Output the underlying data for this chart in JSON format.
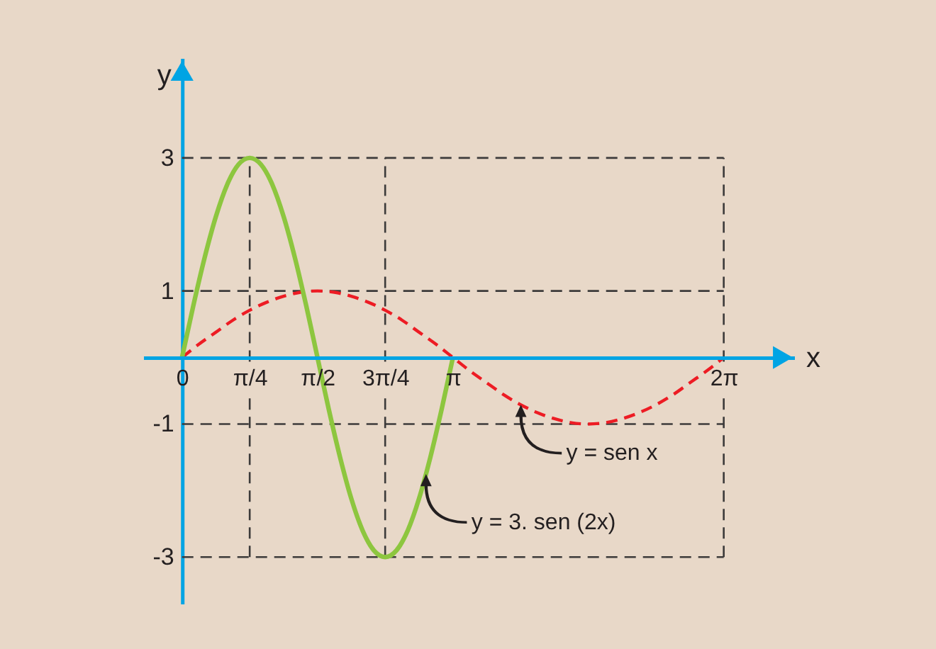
{
  "chart_data": {
    "type": "line",
    "xlabel": "x",
    "ylabel": "y",
    "xlim": [
      -0.45,
      7.1
    ],
    "ylim": [
      -3.7,
      4.5
    ],
    "xticks": [
      0,
      {
        "value": 0.785,
        "label": "π/4"
      },
      {
        "value": 1.571,
        "label": "π/2"
      },
      {
        "value": 2.356,
        "label": "3π/4"
      },
      {
        "value": 3.142,
        "label": "π"
      },
      {
        "value": 6.283,
        "label": "2π"
      }
    ],
    "yticks": [
      -3,
      -1,
      1,
      3
    ],
    "grid": "y",
    "ref_lines": [
      {
        "axis": "x",
        "value": 0.785,
        "color": "#3c3a3a",
        "line_style": "dashed"
      },
      {
        "axis": "x",
        "value": 2.356,
        "color": "#3c3a3a",
        "line_style": "dashed"
      },
      {
        "axis": "x",
        "value": 6.283,
        "color": "#3c3a3a",
        "line_style": "dashed"
      }
    ],
    "series": [
      {
        "color": "#ed1c24",
        "line_style": "dashed",
        "x": [
          0,
          0.196,
          0.393,
          0.589,
          0.785,
          0.982,
          1.178,
          1.374,
          1.571,
          1.767,
          1.963,
          2.16,
          2.356,
          2.553,
          2.749,
          2.945,
          3.142,
          3.338,
          3.534,
          3.731,
          3.927,
          4.123,
          4.32,
          4.516,
          4.712,
          4.909,
          5.105,
          5.301,
          5.498,
          5.694,
          5.89,
          6.087,
          6.283
        ],
        "values": [
          0,
          0.2,
          0.38,
          0.56,
          0.71,
          0.83,
          0.92,
          0.98,
          1,
          0.98,
          0.92,
          0.83,
          0.71,
          0.56,
          0.38,
          0.2,
          0,
          -0.2,
          -0.38,
          -0.56,
          -0.71,
          -0.83,
          -0.92,
          -0.98,
          -1,
          -0.98,
          -0.92,
          -0.83,
          -0.71,
          -0.56,
          -0.38,
          -0.2,
          0
        ]
      },
      {
        "color": "#8dc63f",
        "line_style": "solid",
        "x": [
          0,
          0.131,
          0.262,
          0.393,
          0.524,
          0.654,
          0.785,
          0.916,
          1.047,
          1.178,
          1.309,
          1.44,
          1.571,
          1.702,
          1.833,
          1.963,
          2.094,
          2.225,
          2.356,
          2.487,
          2.618,
          2.749,
          2.88,
          3.011,
          3.142
        ],
        "values": [
          0,
          0.78,
          1.5,
          2.12,
          2.6,
          2.9,
          3,
          2.9,
          2.6,
          2.12,
          1.5,
          0.78,
          0,
          -0.78,
          -1.5,
          -2.12,
          -2.6,
          -2.9,
          -3,
          -2.9,
          -2.6,
          -2.12,
          -1.5,
          -0.78,
          0
        ]
      }
    ],
    "annotations": [
      {
        "text": "y = sen x",
        "x": 3.93,
        "y": -0.71
      },
      {
        "text": "y = 3. sen (2x)",
        "x": 2.83,
        "y": -1.75
      }
    ]
  }
}
